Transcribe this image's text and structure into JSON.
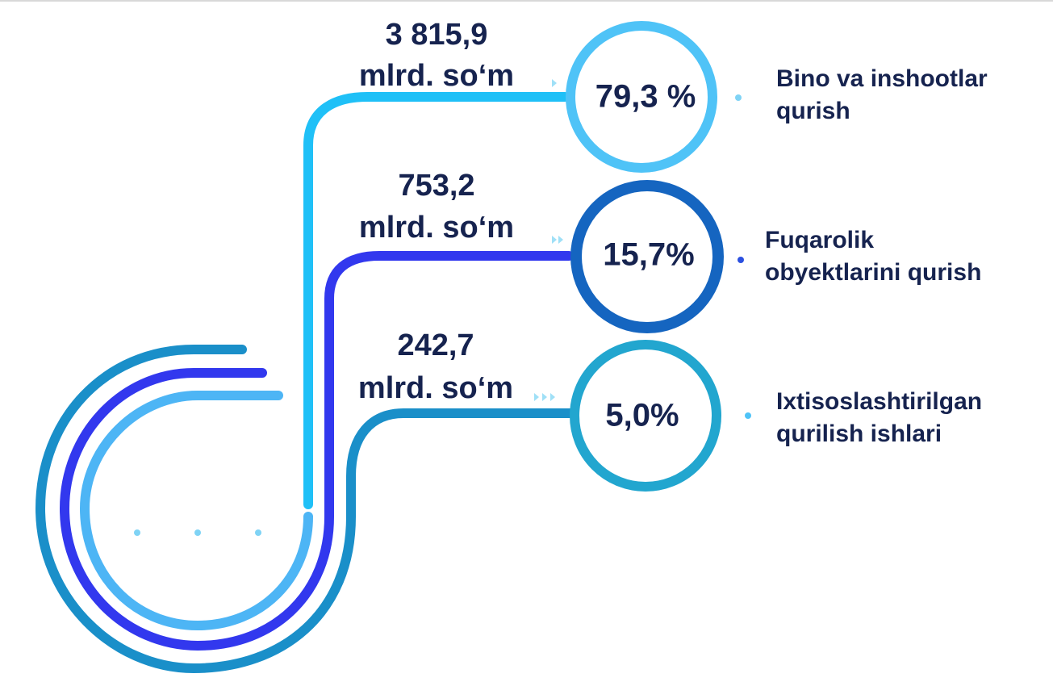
{
  "items": [
    {
      "amount": "3 815,9",
      "unit": "mlrd. so‘m",
      "percent": "79,3 %",
      "label": [
        "Bino va inshootlar",
        "qurish"
      ]
    },
    {
      "amount": "753,2",
      "unit": "mlrd. so‘m",
      "percent": "15,7%",
      "label": [
        "Fuqarolik",
        "obyektlarini qurish"
      ]
    },
    {
      "amount": "242,7",
      "unit": "mlrd. so‘m",
      "percent": "5,0%",
      "label": [
        "Ixtisoslashtirilgan",
        "qurilish ishlari"
      ]
    }
  ]
}
